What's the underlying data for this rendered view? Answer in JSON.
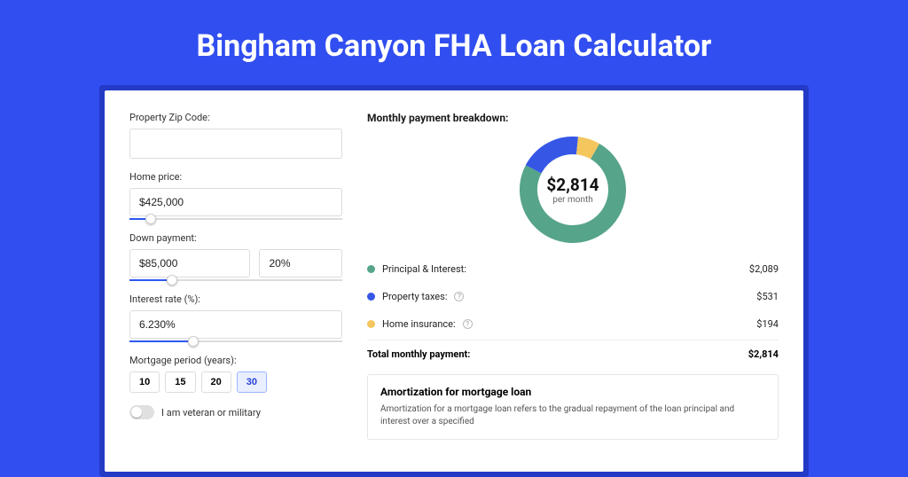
{
  "colors": {
    "background": "#314ef0",
    "card_bg": "#ffffff",
    "title_color": "#ffffff",
    "accent": "#2f59f0",
    "border": "#dcdcdc"
  },
  "page": {
    "title": "Bingham Canyon FHA Loan Calculator"
  },
  "form": {
    "zip": {
      "label": "Property Zip Code:",
      "value": ""
    },
    "home_price": {
      "label": "Home price:",
      "value": "$425,000",
      "slider_pct": 10
    },
    "down_payment": {
      "label": "Down payment:",
      "value": "$85,000",
      "pct": "20%",
      "slider_pct": 20
    },
    "interest": {
      "label": "Interest rate (%):",
      "value": "6.230%",
      "slider_pct": 30
    },
    "period": {
      "label": "Mortgage period (years):",
      "options": [
        "10",
        "15",
        "20",
        "30"
      ],
      "selected": "30"
    },
    "veteran": {
      "label": "I am veteran or military",
      "on": false
    }
  },
  "breakdown": {
    "title": "Monthly payment breakdown:",
    "center_amount": "$2,814",
    "center_sub": "per month",
    "donut": {
      "slices": [
        {
          "name": "Principal & Interest",
          "value": 2089,
          "color": "#56a48a",
          "pct": 74.2
        },
        {
          "name": "Property taxes",
          "value": 531,
          "color": "#3657e6",
          "pct": 18.9
        },
        {
          "name": "Home insurance",
          "value": 194,
          "color": "#f3c75e",
          "pct": 6.9
        }
      ],
      "radius": 50,
      "stroke_width": 20
    },
    "items": [
      {
        "label": "Principal & Interest:",
        "value": "$2,089",
        "color": "#56a48a",
        "help": false
      },
      {
        "label": "Property taxes:",
        "value": "$531",
        "color": "#3657e6",
        "help": true
      },
      {
        "label": "Home insurance:",
        "value": "$194",
        "color": "#f3c75e",
        "help": true
      }
    ],
    "total": {
      "label": "Total monthly payment:",
      "value": "$2,814"
    }
  },
  "amortization": {
    "title": "Amortization for mortgage loan",
    "text": "Amortization for a mortgage loan refers to the gradual repayment of the loan principal and interest over a specified"
  }
}
